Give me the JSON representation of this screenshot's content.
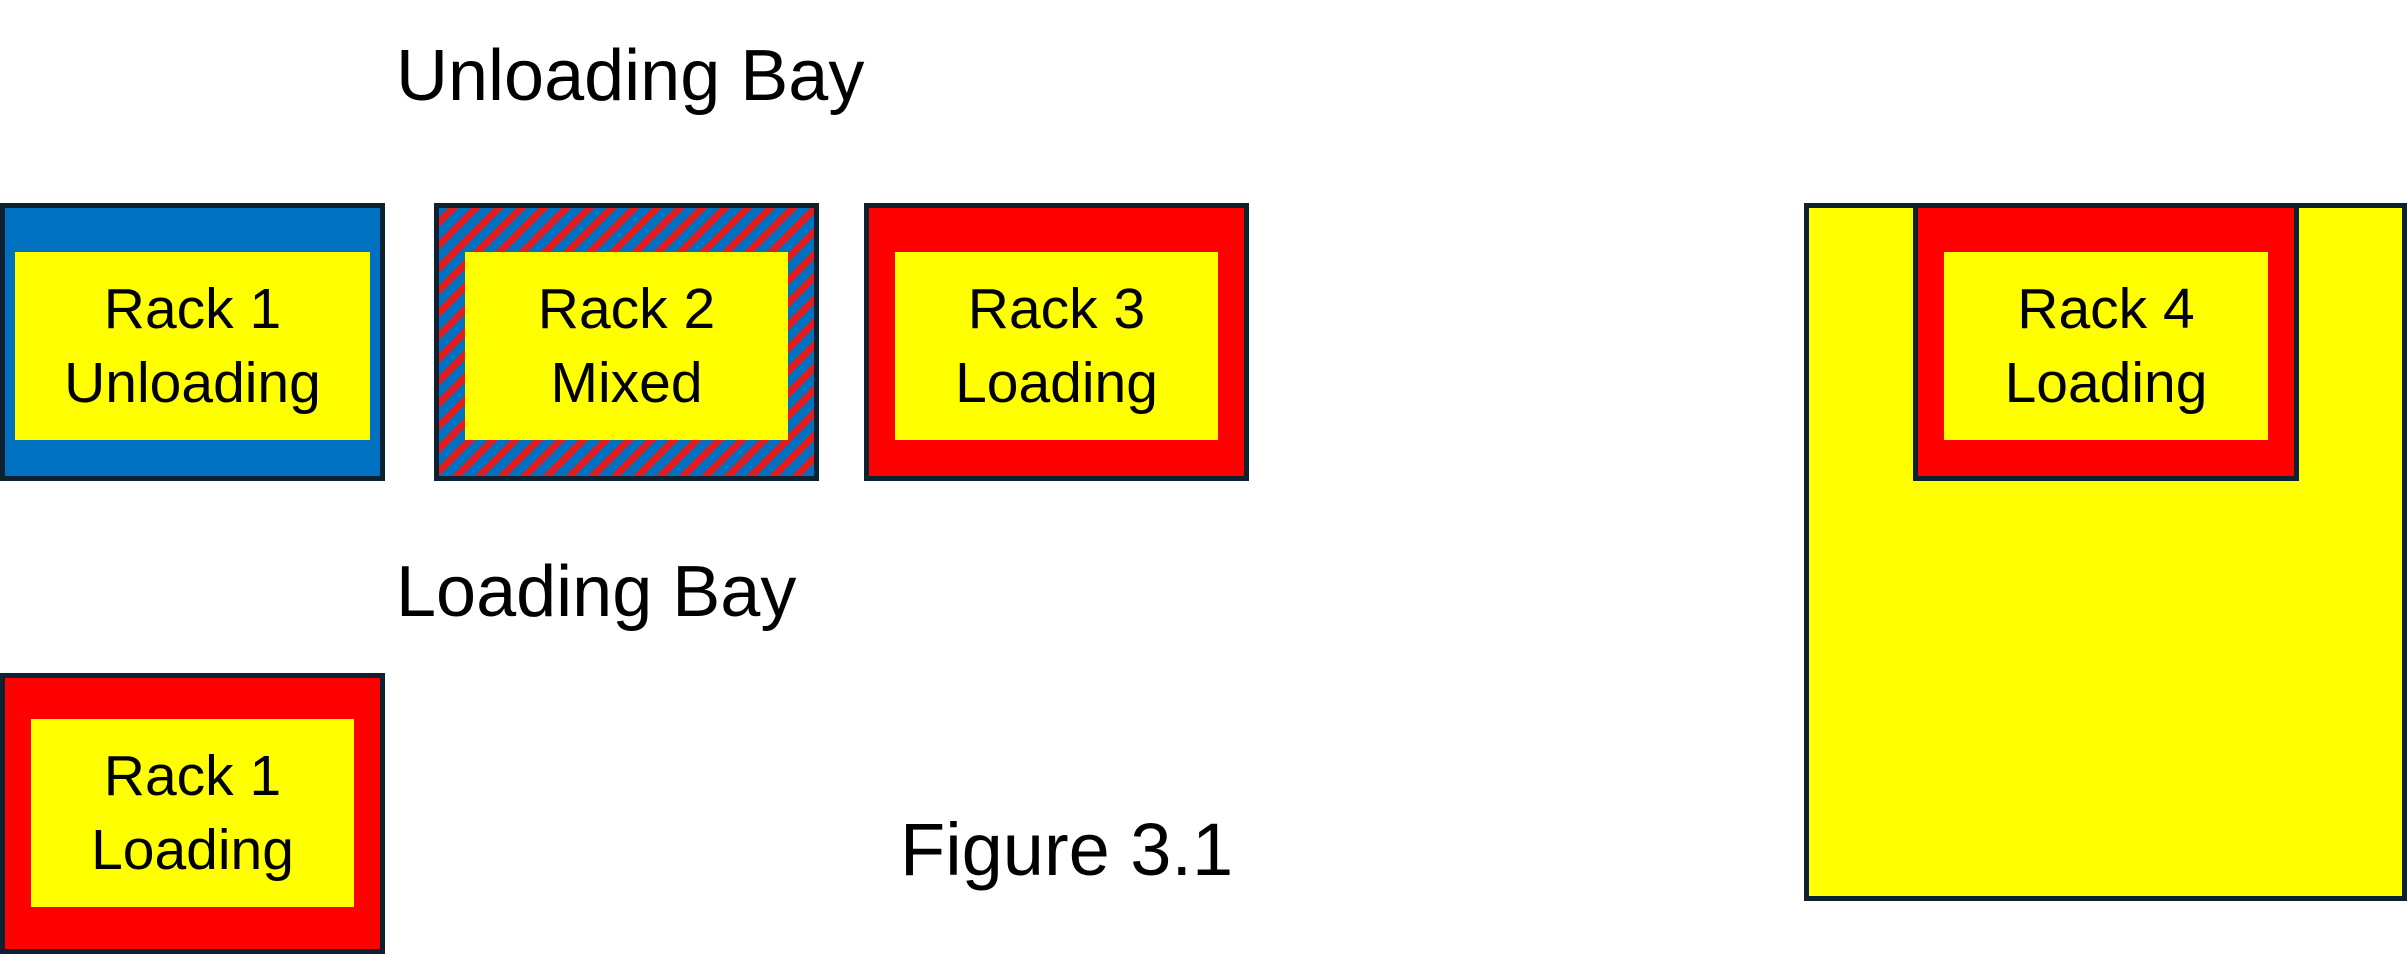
{
  "sections": {
    "unloading_bay": "Unloading Bay",
    "loading_bay": "Loading Bay"
  },
  "racks": {
    "unloading_1": {
      "name": "Rack 1",
      "status": "Unloading"
    },
    "unloading_2": {
      "name": "Rack 2",
      "status": "Mixed"
    },
    "unloading_3": {
      "name": "Rack 3",
      "status": "Loading"
    },
    "loading_1": {
      "name": "Rack 1",
      "status": "Loading"
    },
    "zone_4": {
      "name": "Rack 4",
      "status": "Loading"
    }
  },
  "caption": "Figure 3.1",
  "colors": {
    "unloading": "#0070c0",
    "loading": "#ff0000",
    "rack_interior": "#ffff00",
    "border": "#0d2231"
  }
}
